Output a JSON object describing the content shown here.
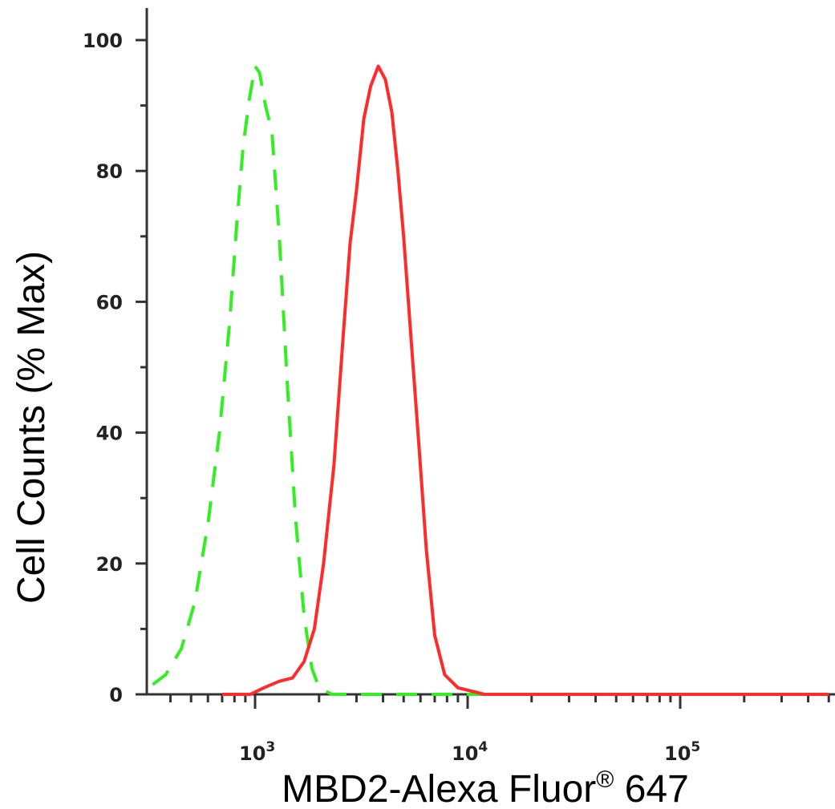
{
  "chart_data": {
    "type": "line",
    "xlabel": "MBD2-Alexa Fluor",
    "xlabel_superscript": "®",
    "xlabel_suffix": " 647",
    "ylabel": "Cell Counts (% Max)",
    "x_scale": "log",
    "xlim": [
      250,
      500000
    ],
    "ylim": [
      0,
      100
    ],
    "y_ticks": [
      "0",
      "20",
      "40",
      "60",
      "80",
      "100"
    ],
    "x_tick_labels": [
      {
        "base": "10",
        "exp": "3",
        "value": 1000
      },
      {
        "base": "10",
        "exp": "4",
        "value": 10000
      },
      {
        "base": "10",
        "exp": "5",
        "value": 100000
      }
    ],
    "grid": false,
    "series": [
      {
        "color": "#33ee22",
        "dash": "dashed",
        "points": [
          [
            270,
            2
          ],
          [
            285,
            4
          ],
          [
            300,
            2
          ],
          [
            330,
            1.5
          ],
          [
            380,
            3
          ],
          [
            450,
            7
          ],
          [
            520,
            14
          ],
          [
            600,
            26
          ],
          [
            680,
            40
          ],
          [
            760,
            57
          ],
          [
            820,
            72
          ],
          [
            880,
            84
          ],
          [
            940,
            91
          ],
          [
            1000,
            96
          ],
          [
            1050,
            95
          ],
          [
            1120,
            90
          ],
          [
            1200,
            86
          ],
          [
            1300,
            70
          ],
          [
            1420,
            47
          ],
          [
            1550,
            27
          ],
          [
            1700,
            12
          ],
          [
            1850,
            4
          ],
          [
            2000,
            1
          ],
          [
            2300,
            0
          ],
          [
            3000,
            0
          ],
          [
            10000,
            0
          ],
          [
            100000,
            0
          ],
          [
            500000,
            0
          ]
        ]
      },
      {
        "color": "#ff2a2a",
        "dash": "solid",
        "points": [
          [
            250,
            0
          ],
          [
            700,
            0
          ],
          [
            950,
            0
          ],
          [
            1100,
            1
          ],
          [
            1300,
            2
          ],
          [
            1500,
            2.5
          ],
          [
            1700,
            5
          ],
          [
            1900,
            10
          ],
          [
            2100,
            20
          ],
          [
            2350,
            35
          ],
          [
            2600,
            55
          ],
          [
            2800,
            69
          ],
          [
            3000,
            77
          ],
          [
            3250,
            88
          ],
          [
            3500,
            93
          ],
          [
            3800,
            96
          ],
          [
            4100,
            94
          ],
          [
            4400,
            89
          ],
          [
            4700,
            80
          ],
          [
            5000,
            70
          ],
          [
            5400,
            55
          ],
          [
            5900,
            38
          ],
          [
            6400,
            22
          ],
          [
            7000,
            9
          ],
          [
            7800,
            3
          ],
          [
            9000,
            1
          ],
          [
            12000,
            0
          ],
          [
            20000,
            0
          ],
          [
            100000,
            0
          ],
          [
            500000,
            0
          ]
        ]
      }
    ]
  }
}
